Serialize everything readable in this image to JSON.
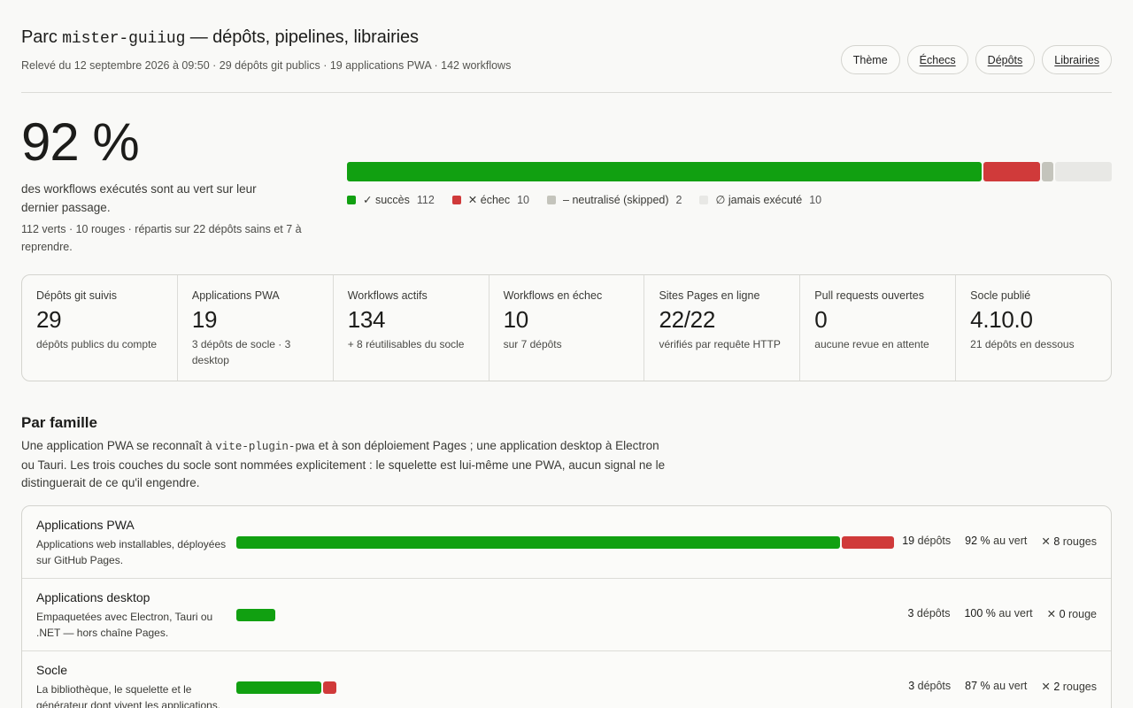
{
  "header": {
    "title_prefix": "Parc",
    "account": "mister-guiiug",
    "title_suffix": "— dépôts, pipelines, librairies",
    "subtitle": "Relevé du 12 septembre 2026 à 09:50 · 29 dépôts git publics · 19 applications PWA · 142 workflows",
    "nav": [
      "Thème",
      "Échecs",
      "Dépôts",
      "Librairies"
    ]
  },
  "hero": {
    "percent": "92 %",
    "desc": "des workflows exécutés sont au vert sur leur dernier passage.",
    "sub": "112 verts · 10 rouges · répartis sur 22 dépôts sains et 7 à reprendre."
  },
  "status_bar": {
    "colors": {
      "success": "#11a011",
      "failure": "#d03a3a",
      "skipped": "#c4c4bc",
      "never": "#e8e8e5"
    },
    "counts": {
      "success": 112,
      "failure": 10,
      "skipped": 2,
      "never": 10
    },
    "legend": [
      {
        "label": "✓ succès",
        "count": "112"
      },
      {
        "label": "✕ échec",
        "count": "10"
      },
      {
        "label": "– neutralisé (skipped)",
        "count": "2"
      },
      {
        "label": "∅ jamais exécuté",
        "count": "10"
      }
    ]
  },
  "stats": [
    {
      "label": "Dépôts git suivis",
      "value": "29",
      "note": "dépôts publics du compte"
    },
    {
      "label": "Applications PWA",
      "value": "19",
      "note": "3 dépôts de socle · 3 desktop"
    },
    {
      "label": "Workflows actifs",
      "value": "134",
      "note": "+ 8 réutilisables du socle"
    },
    {
      "label": "Workflows en échec",
      "value": "10",
      "note": "sur 7 dépôts"
    },
    {
      "label": "Sites Pages en ligne",
      "value": "22/22",
      "note": "vérifiés par requête HTTP"
    },
    {
      "label": "Pull requests ouvertes",
      "value": "0",
      "note": "aucune revue en attente"
    },
    {
      "label": "Socle publié",
      "value": "4.10.0",
      "note": "21 dépôts en dessous"
    }
  ],
  "family": {
    "title": "Par famille",
    "desc_1": "Une application PWA se reconnaît à",
    "desc_code": "vite-plugin-pwa",
    "desc_2": "et à son déploiement Pages ; une application desktop à Electron ou Tauri. Les trois couches du socle sont nommées explicitement : le squelette est lui-même une PWA, aucun signal ne le distinguerait de ce qu'il engendre.",
    "rows": [
      {
        "name": "Applications PWA",
        "desc": "Applications web installables, déployées sur GitHub Pages.",
        "repos_n": "19",
        "repos_l": "dépôts",
        "pct_n": "92 %",
        "pct_l": "au vert",
        "fail_n": "8",
        "fail_l": "rouges",
        "green": 92,
        "red": 8,
        "scale": 100
      },
      {
        "name": "Applications desktop",
        "desc": "Empaquetées avec Electron, Tauri ou .NET — hors chaîne Pages.",
        "repos_n": "3",
        "repos_l": "dépôts",
        "pct_n": "100 %",
        "pct_l": "au vert",
        "fail_n": "0",
        "fail_l": "rouge",
        "green": 6,
        "red": 0,
        "scale": 100
      },
      {
        "name": "Socle",
        "desc": "La bibliothèque, le squelette et le générateur dont vivent les applications.",
        "repos_n": "3",
        "repos_l": "dépôts",
        "pct_n": "87 %",
        "pct_l": "au vert",
        "fail_n": "2",
        "fail_l": "rouges",
        "green": 13,
        "red": 2,
        "scale": 100
      }
    ]
  }
}
